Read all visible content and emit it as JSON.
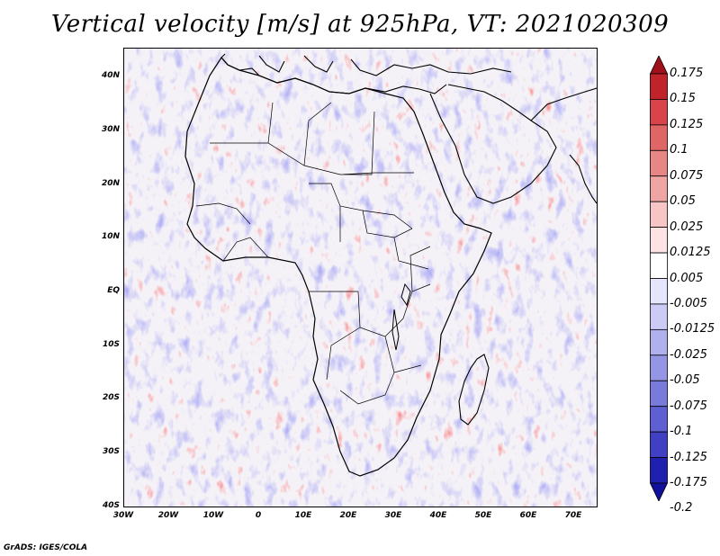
{
  "title": "Vertical velocity [m/s] at 925hPa, VT: 2021020309",
  "lat_labels": [
    "40N",
    "30N",
    "20N",
    "10N",
    "EQ",
    "10S",
    "20S",
    "30S",
    "40S"
  ],
  "lon_labels": [
    "30W",
    "20W",
    "10W",
    "0",
    "10E",
    "20E",
    "30E",
    "40E",
    "50E",
    "60E",
    "70E"
  ],
  "colorbar": {
    "labels": [
      "0.175",
      "0.15",
      "0.125",
      "0.1",
      "0.075",
      "0.05",
      "0.025",
      "0.0125",
      "0.005",
      "-0.005",
      "-0.0125",
      "-0.025",
      "-0.05",
      "-0.075",
      "-0.1",
      "-0.125",
      "-0.175",
      "-0.2"
    ],
    "colors": [
      "#a0121b",
      "#c0232a",
      "#d84449",
      "#e06565",
      "#e88585",
      "#f0a5a5",
      "#f7c5c5",
      "#fde3e3",
      "#ffffff",
      "#e5e5fb",
      "#cbcbf5",
      "#b0b0ee",
      "#9595e6",
      "#7a7add",
      "#5f5fd4",
      "#4040c4",
      "#2020b0",
      "#10109a"
    ]
  },
  "footer": "GrADS: IGES/COLA"
}
